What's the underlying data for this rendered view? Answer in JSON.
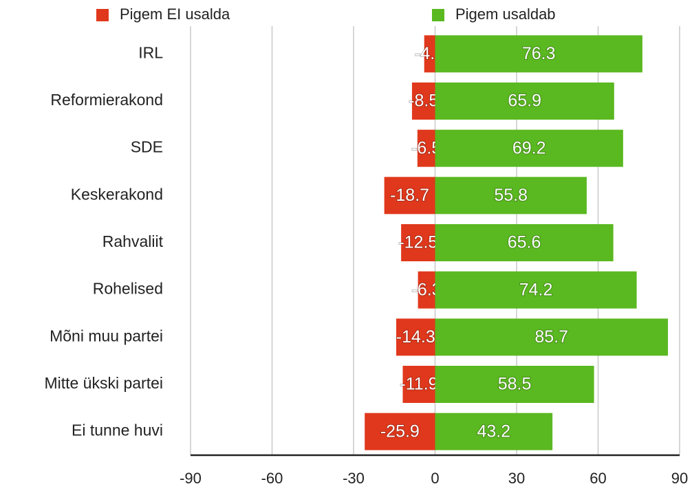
{
  "chart_data": {
    "type": "diverging-bar",
    "categories": [
      "IRL",
      "Reformierakond",
      "SDE",
      "Keskerakond",
      "Rahvaliit",
      "Rohelised",
      "Mõni muu partei",
      "Mitte ükski partei",
      "Ei tunne huvi"
    ],
    "series": [
      {
        "name": "Pigem EI usalda",
        "color": "#e0381c",
        "values": [
          -4.0,
          -8.5,
          -6.5,
          -18.7,
          -12.5,
          -6.3,
          -14.3,
          -11.9,
          -25.9
        ],
        "value_labels": [
          "-4.0",
          "-8.5",
          "-6.5",
          "-18.7",
          "-12.5",
          "-6.3",
          "-14.3",
          "-11.9",
          "-25.9"
        ]
      },
      {
        "name": "Pigem usaldab",
        "color": "#5ab820",
        "values": [
          76.3,
          65.9,
          69.2,
          55.8,
          65.6,
          74.2,
          85.7,
          58.5,
          43.2
        ]
      }
    ],
    "xlim": [
      -90,
      90
    ],
    "xticks": [
      -90,
      -60,
      -30,
      0,
      30,
      60,
      90
    ],
    "grid": true,
    "legend": "top"
  }
}
